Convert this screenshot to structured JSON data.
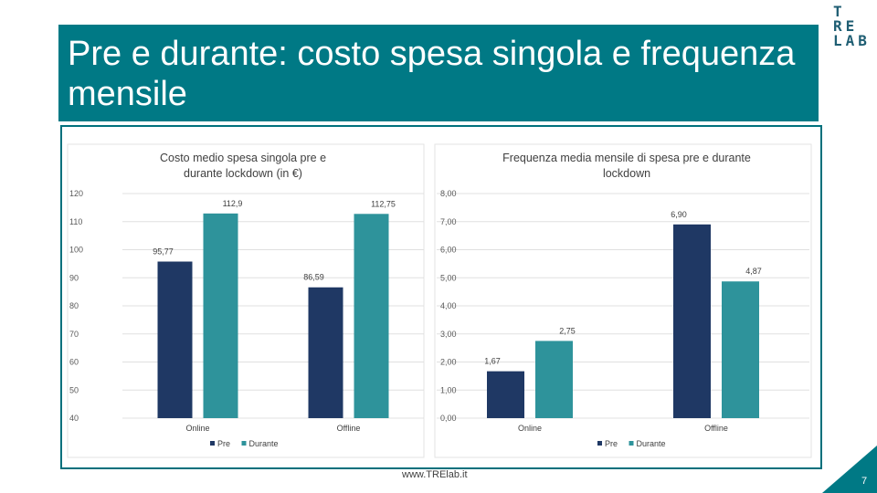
{
  "slide": {
    "title": "Pre e durante: costo spesa singola e frequenza mensile",
    "logo": [
      "T",
      "RE",
      "LAB"
    ],
    "footer_url": "www.TRElab.it",
    "page_number": "7"
  },
  "colors": {
    "title_bg": "#007985",
    "pre": "#1f3864",
    "durante": "#2e939b",
    "corner": "#007985"
  },
  "chart_data": [
    {
      "type": "bar",
      "title": "Costo medio spesa singola pre e durante lockdown (in €)",
      "categories": [
        "Online",
        "Offline"
      ],
      "series": [
        {
          "name": "Pre",
          "values": [
            95.77,
            86.59
          ],
          "labels": [
            "95,77",
            "86,59"
          ]
        },
        {
          "name": "Durante",
          "values": [
            112.9,
            112.75
          ],
          "labels": [
            "112,9",
            "112,75"
          ]
        }
      ],
      "ylim": [
        40,
        120
      ],
      "yticks": [
        120,
        110,
        100,
        90,
        80,
        70,
        60,
        50,
        40
      ],
      "ytick_labels": [
        "120",
        "110",
        "100",
        "90",
        "80",
        "70",
        "60",
        "50",
        "40"
      ],
      "legend": [
        "Pre",
        "Durante"
      ]
    },
    {
      "type": "bar",
      "title": "Frequenza media mensile di spesa pre e durante lockdown",
      "categories": [
        "Online",
        "Offline"
      ],
      "series": [
        {
          "name": "Pre",
          "values": [
            1.67,
            6.9
          ],
          "labels": [
            "1,67",
            "6,90"
          ]
        },
        {
          "name": "Durante",
          "values": [
            2.75,
            4.87
          ],
          "labels": [
            "2,75",
            "4,87"
          ]
        }
      ],
      "ylim": [
        0,
        8
      ],
      "yticks": [
        8,
        7,
        6,
        5,
        4,
        3,
        2,
        1,
        0
      ],
      "ytick_labels": [
        "8,00",
        "7,00",
        "6,00",
        "5,00",
        "4,00",
        "3,00",
        "2,00",
        "1,00",
        "0,00"
      ],
      "legend": [
        "Pre",
        "Durante"
      ]
    }
  ]
}
